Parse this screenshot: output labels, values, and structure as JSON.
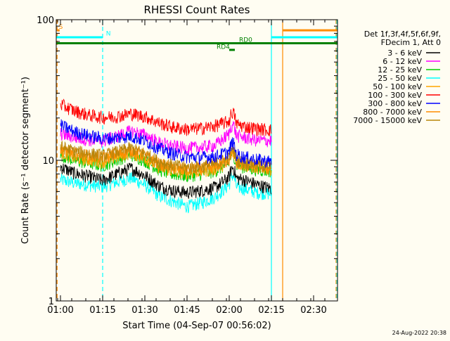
{
  "chart_data": {
    "type": "line",
    "title": "RHESSI Count Rates",
    "xlabel": "Start Time (04-Sep-07 00:56:02)",
    "ylabel": "Count Rate (s⁻¹ detector segment⁻¹)",
    "yscale": "log",
    "ylim": [
      1,
      100
    ],
    "xlim_minutes": [
      -1.5,
      98.5
    ],
    "x_tick_labels": [
      "01:00",
      "01:15",
      "01:30",
      "01:45",
      "02:00",
      "02:15",
      "02:30"
    ],
    "x_ticks_minutes": [
      0,
      15,
      30,
      45,
      60,
      75,
      90
    ],
    "y_tick_labels": [
      "1",
      "10",
      "100"
    ],
    "y_ticks": [
      1,
      10,
      100
    ],
    "header_lines": [
      "Det 1f,3f,4f,5f,6f,9f,",
      "FDecim 1, Att 0"
    ],
    "x_series_minutes": [
      0,
      5,
      10,
      15,
      20,
      25,
      30,
      35,
      40,
      45,
      50,
      55,
      60,
      65,
      70,
      75
    ],
    "series": [
      {
        "name": "3 - 6 keV",
        "color": "#000000",
        "values": [
          9.0,
          8.1,
          7.7,
          7.2,
          8.0,
          8.8,
          7.8,
          6.6,
          6.1,
          5.9,
          6.1,
          6.4,
          7.6,
          7.3,
          6.7,
          6.3
        ]
      },
      {
        "name": "6 - 12 keV",
        "color": "#ff00ff",
        "values": [
          15.5,
          14.6,
          14.0,
          13.7,
          14.8,
          16.2,
          15.2,
          13.4,
          12.6,
          12.2,
          12.4,
          12.8,
          15.4,
          14.6,
          13.9,
          13.8
        ]
      },
      {
        "name": "12 - 25 keV",
        "color": "#00cc00",
        "values": [
          11.0,
          10.0,
          9.6,
          9.2,
          10.1,
          11.0,
          10.0,
          8.6,
          8.0,
          7.8,
          8.0,
          8.4,
          9.6,
          9.0,
          8.6,
          8.4
        ]
      },
      {
        "name": "25 - 50 keV",
        "color": "#00ffff",
        "values": [
          7.3,
          6.9,
          6.7,
          6.5,
          7.0,
          7.5,
          6.7,
          5.6,
          5.1,
          4.7,
          5.0,
          5.5,
          6.7,
          6.3,
          5.9,
          5.8
        ]
      },
      {
        "name": "50 - 100 keV",
        "color": "#ffa500",
        "values": [
          11.5,
          10.5,
          10.1,
          9.8,
          10.6,
          11.4,
          10.4,
          9.0,
          8.4,
          8.2,
          8.4,
          8.7,
          9.9,
          9.3,
          8.9,
          8.7
        ]
      },
      {
        "name": "100 - 300 keV",
        "color": "#ff0000",
        "values": [
          25.0,
          22.5,
          21.0,
          20.2,
          20.5,
          21.5,
          20.5,
          18.5,
          17.2,
          16.6,
          16.9,
          17.6,
          19.0,
          17.5,
          16.8,
          16.4
        ]
      },
      {
        "name": "300 - 800 keV",
        "color": "#0000ff",
        "values": [
          17.8,
          16.0,
          15.0,
          14.3,
          14.5,
          14.9,
          13.8,
          12.2,
          11.2,
          10.6,
          10.5,
          10.7,
          11.5,
          10.6,
          10.1,
          9.8
        ]
      },
      {
        "name": "800 - 7000 keV",
        "color": "#ff8c00",
        "values": [
          12.0,
          11.2,
          10.8,
          10.4,
          11.1,
          11.8,
          10.8,
          9.4,
          8.8,
          8.6,
          8.7,
          9.1,
          10.1,
          9.4,
          9.0,
          8.8
        ]
      },
      {
        "name": "7000 - 15000 keV",
        "color": "#b8860b",
        "values": [
          12.5,
          11.6,
          11.2,
          10.8,
          11.5,
          12.2,
          11.2,
          9.8,
          9.2,
          8.9,
          9.0,
          9.4,
          10.4,
          9.7,
          9.3,
          9.1
        ]
      }
    ],
    "flags": [
      {
        "label": "S",
        "color": "#ff8c00"
      },
      {
        "label": "N",
        "color": "#00ffff"
      },
      {
        "label": "RD0",
        "color": "#008000"
      },
      {
        "label": "RD4",
        "color": "#008000"
      }
    ],
    "flag_segments_minutes": [
      {
        "color": "#ff8c00",
        "start": -1.2,
        "end": -0.3,
        "level": 84
      },
      {
        "color": "#00ffff",
        "start": -1.5,
        "end": 15.0,
        "level": 75
      },
      {
        "color": "#00ffff",
        "start": 75.0,
        "end": 98.5,
        "level": 75
      },
      {
        "color": "#ff8c00",
        "start": 79.0,
        "end": 98.5,
        "level": 84
      },
      {
        "color": "#008000",
        "start": -1.5,
        "end": 98.5,
        "level": 68
      },
      {
        "color": "#008000",
        "start": 60.0,
        "end": 62.0,
        "level": 61
      }
    ],
    "vertical_markers_minutes": [
      {
        "x": -1.2,
        "color": "#ff8c00",
        "dashed": true
      },
      {
        "x": 15.0,
        "color": "#00ffff",
        "dashed": true
      },
      {
        "x": 75.0,
        "color": "#00ffff",
        "dashed": false
      },
      {
        "x": 79.0,
        "color": "#ff8c00",
        "dashed": false
      },
      {
        "x": 98.0,
        "color": "#ff8c00",
        "dashed": true
      },
      {
        "x": 98.3,
        "color": "#00ffff",
        "dashed": true
      }
    ],
    "timestamp": "24-Aug-2022 20:38"
  }
}
